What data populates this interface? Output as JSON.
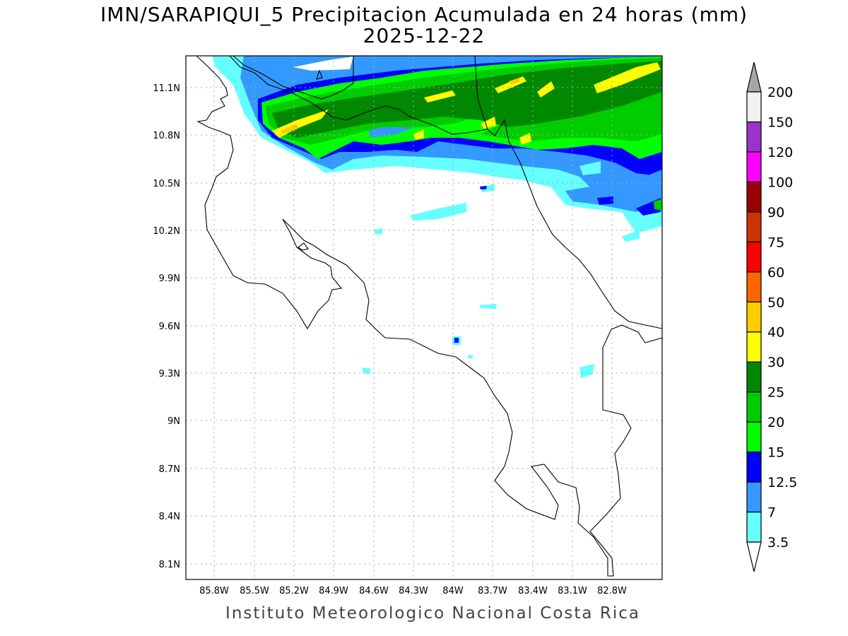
{
  "title": {
    "line1": "IMN/SARAPIQUI_5 Precipitacion Acumulada en 24 horas (mm)",
    "line2": "2025-12-22"
  },
  "footer": "Instituto Meteorologico Nacional Costa Rica",
  "map": {
    "lat_ticks": [
      "11.1N",
      "10.8N",
      "10.5N",
      "10.2N",
      "9.9N",
      "9.6N",
      "9.3N",
      "9N",
      "8.7N",
      "8.4N",
      "8.1N"
    ],
    "lon_ticks": [
      "85.8W",
      "85.5W",
      "85.2W",
      "84.9W",
      "84.6W",
      "84.3W",
      "84W",
      "83.7W",
      "83.4W",
      "83.1W",
      "82.8W"
    ]
  },
  "colorbar": {
    "levels": [
      "3.5",
      "7",
      "12.5",
      "15",
      "20",
      "25",
      "30",
      "40",
      "50",
      "60",
      "75",
      "90",
      "100",
      "120",
      "150",
      "200"
    ],
    "colors": [
      "#66ffff",
      "#3399ff",
      "#0000ff",
      "#00ff00",
      "#00cc00",
      "#008800",
      "#ffff00",
      "#ffcc00",
      "#ff6600",
      "#ff0000",
      "#cc3300",
      "#990000",
      "#ff00ff",
      "#9933cc",
      "#f2f2f2"
    ],
    "over_color": "#a6a6a6",
    "under_color": "#ffffff"
  }
}
